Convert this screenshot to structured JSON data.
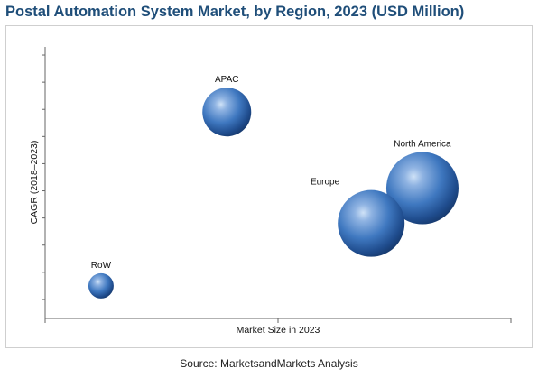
{
  "chart_data": {
    "type": "scatter",
    "title": "Postal Automation System Market, by Region, 2023 (USD Million)",
    "xlabel": "Market Size in 2023",
    "ylabel": "CAGR (2018–2023)",
    "xlim": [
      0,
      100
    ],
    "ylim": [
      0,
      100
    ],
    "grid": false,
    "legend": "none",
    "y_ticks": 10,
    "x_ticks": 1,
    "bubble_color": "#3f78c0",
    "series": [
      {
        "name": "APAC",
        "x": 39,
        "y": 76,
        "size": 27
      },
      {
        "name": "North America",
        "x": 81,
        "y": 48,
        "size": 40
      },
      {
        "name": "Europe",
        "x": 70,
        "y": 35,
        "size": 37
      },
      {
        "name": "RoW",
        "x": 12,
        "y": 12,
        "size": 14
      }
    ]
  },
  "source": "Source: MarketsandMarkets Analysis"
}
